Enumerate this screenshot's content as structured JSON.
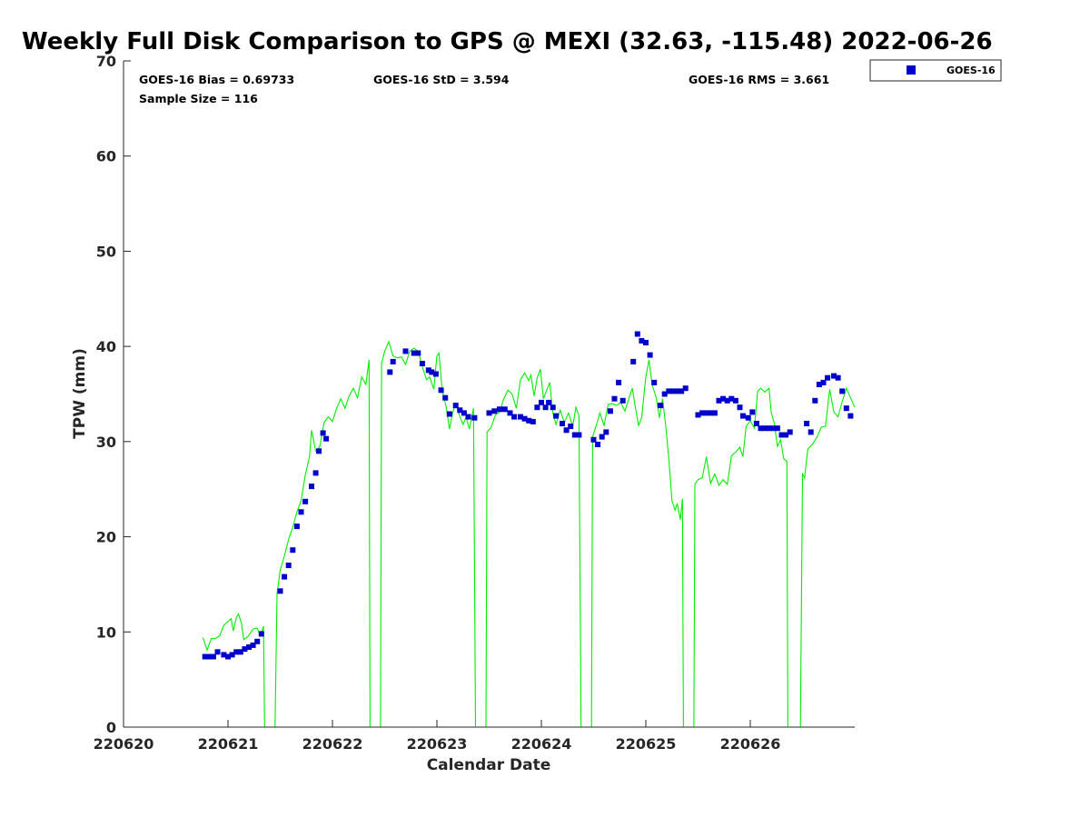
{
  "chart_data": {
    "type": "scatter",
    "title": "Weekly Full Disk Comparison to GPS @ MEXI (32.63, -115.48) 2022-06-26",
    "xlabel": "Calendar Date",
    "ylabel": "TPW (mm)",
    "xlim": [
      0,
      7
    ],
    "ylim": [
      0,
      70
    ],
    "x_ticks": [
      {
        "value": 0,
        "label": "220620"
      },
      {
        "value": 1,
        "label": "220621"
      },
      {
        "value": 2,
        "label": "220622"
      },
      {
        "value": 3,
        "label": "220623"
      },
      {
        "value": 4,
        "label": "220624"
      },
      {
        "value": 5,
        "label": "220625"
      },
      {
        "value": 6,
        "label": "220626"
      }
    ],
    "y_ticks": [
      0,
      10,
      20,
      30,
      40,
      50,
      60,
      70
    ],
    "grid": false,
    "legend": {
      "position": "top-right",
      "entries": [
        "GOES-16"
      ]
    },
    "stats": {
      "bias": "GOES-16 Bias = 0.69733",
      "std": "GOES-16 StD = 3.594",
      "rms": "GOES-16 RMS = 3.661",
      "sample": "Sample Size = 116"
    },
    "colors": {
      "goes": "#0000cc",
      "gps": "#00ee00",
      "axis": "#262626"
    },
    "series": [
      {
        "name": "GOES-16",
        "style": "square-markers",
        "points": [
          [
            0.78,
            7.4
          ],
          [
            0.82,
            7.4
          ],
          [
            0.86,
            7.4
          ],
          [
            0.9,
            7.9
          ],
          [
            0.96,
            7.6
          ],
          [
            1.0,
            7.4
          ],
          [
            1.04,
            7.6
          ],
          [
            1.08,
            7.9
          ],
          [
            1.12,
            7.9
          ],
          [
            1.16,
            8.2
          ],
          [
            1.2,
            8.4
          ],
          [
            1.24,
            8.6
          ],
          [
            1.28,
            9.0
          ],
          [
            1.32,
            9.8
          ],
          [
            1.5,
            14.3
          ],
          [
            1.54,
            15.8
          ],
          [
            1.58,
            17.0
          ],
          [
            1.62,
            18.6
          ],
          [
            1.66,
            21.1
          ],
          [
            1.7,
            22.6
          ],
          [
            1.74,
            23.7
          ],
          [
            1.8,
            25.3
          ],
          [
            1.84,
            26.7
          ],
          [
            1.87,
            29.0
          ],
          [
            1.91,
            30.9
          ],
          [
            1.94,
            30.3
          ],
          [
            2.55,
            37.3
          ],
          [
            2.58,
            38.4
          ],
          [
            2.7,
            39.5
          ],
          [
            2.78,
            39.3
          ],
          [
            2.82,
            39.3
          ],
          [
            2.86,
            38.2
          ],
          [
            2.92,
            37.5
          ],
          [
            2.95,
            37.3
          ],
          [
            2.99,
            37.1
          ],
          [
            3.04,
            35.4
          ],
          [
            3.08,
            34.6
          ],
          [
            3.12,
            32.9
          ],
          [
            3.18,
            33.8
          ],
          [
            3.22,
            33.3
          ],
          [
            3.26,
            33.0
          ],
          [
            3.3,
            32.6
          ],
          [
            3.36,
            32.5
          ],
          [
            3.5,
            33.0
          ],
          [
            3.55,
            33.2
          ],
          [
            3.6,
            33.4
          ],
          [
            3.65,
            33.4
          ],
          [
            3.7,
            33.0
          ],
          [
            3.74,
            32.6
          ],
          [
            3.8,
            32.6
          ],
          [
            3.84,
            32.4
          ],
          [
            3.88,
            32.2
          ],
          [
            3.92,
            32.1
          ],
          [
            3.96,
            33.6
          ],
          [
            4.0,
            34.1
          ],
          [
            4.04,
            33.6
          ],
          [
            4.07,
            34.1
          ],
          [
            4.11,
            33.6
          ],
          [
            4.14,
            32.7
          ],
          [
            4.2,
            31.9
          ],
          [
            4.24,
            31.2
          ],
          [
            4.28,
            31.6
          ],
          [
            4.32,
            30.7
          ],
          [
            4.36,
            30.7
          ],
          [
            4.5,
            30.2
          ],
          [
            4.54,
            29.7
          ],
          [
            4.58,
            30.5
          ],
          [
            4.62,
            31.0
          ],
          [
            4.66,
            33.2
          ],
          [
            4.7,
            34.5
          ],
          [
            4.74,
            36.2
          ],
          [
            4.78,
            34.3
          ],
          [
            4.88,
            38.4
          ],
          [
            4.92,
            41.3
          ],
          [
            4.96,
            40.6
          ],
          [
            5.0,
            40.4
          ],
          [
            5.04,
            39.1
          ],
          [
            5.08,
            36.2
          ],
          [
            5.14,
            33.8
          ],
          [
            5.18,
            35.0
          ],
          [
            5.22,
            35.3
          ],
          [
            5.26,
            35.3
          ],
          [
            5.3,
            35.3
          ],
          [
            5.34,
            35.3
          ],
          [
            5.38,
            35.6
          ],
          [
            5.5,
            32.8
          ],
          [
            5.54,
            33.0
          ],
          [
            5.58,
            33.0
          ],
          [
            5.62,
            33.0
          ],
          [
            5.66,
            33.0
          ],
          [
            5.7,
            34.3
          ],
          [
            5.74,
            34.5
          ],
          [
            5.78,
            34.3
          ],
          [
            5.82,
            34.5
          ],
          [
            5.86,
            34.3
          ],
          [
            5.9,
            33.6
          ],
          [
            5.93,
            32.7
          ],
          [
            5.98,
            32.5
          ],
          [
            6.02,
            33.1
          ],
          [
            6.06,
            31.9
          ],
          [
            6.1,
            31.4
          ],
          [
            6.14,
            31.4
          ],
          [
            6.18,
            31.4
          ],
          [
            6.22,
            31.4
          ],
          [
            6.26,
            31.4
          ],
          [
            6.3,
            30.7
          ],
          [
            6.34,
            30.7
          ],
          [
            6.38,
            31.0
          ],
          [
            6.54,
            31.9
          ],
          [
            6.58,
            31.0
          ],
          [
            6.62,
            34.3
          ],
          [
            6.66,
            36.0
          ],
          [
            6.7,
            36.2
          ],
          [
            6.74,
            36.7
          ],
          [
            6.8,
            36.9
          ],
          [
            6.84,
            36.7
          ],
          [
            6.88,
            35.3
          ],
          [
            6.92,
            33.5
          ],
          [
            6.96,
            32.7
          ]
        ]
      },
      {
        "name": "GPS",
        "style": "line",
        "points": [
          [
            0.76,
            9.4
          ],
          [
            0.8,
            8.1
          ],
          [
            0.84,
            9.3
          ],
          [
            0.88,
            9.3
          ],
          [
            0.92,
            9.6
          ],
          [
            0.96,
            10.7
          ],
          [
            1.0,
            11.1
          ],
          [
            1.03,
            11.4
          ],
          [
            1.05,
            10.1
          ],
          [
            1.08,
            11.5
          ],
          [
            1.1,
            11.9
          ],
          [
            1.13,
            10.9
          ],
          [
            1.15,
            9.2
          ],
          [
            1.19,
            9.5
          ],
          [
            1.24,
            10.3
          ],
          [
            1.28,
            10.4
          ],
          [
            1.31,
            9.6
          ],
          [
            1.34,
            10.6
          ],
          [
            1.35,
            0.0
          ],
          [
            1.45,
            0.0
          ],
          [
            1.47,
            14.0
          ],
          [
            1.5,
            16.5
          ],
          [
            1.54,
            18.0
          ],
          [
            1.58,
            19.7
          ],
          [
            1.62,
            21.0
          ],
          [
            1.66,
            22.6
          ],
          [
            1.7,
            23.8
          ],
          [
            1.74,
            26.5
          ],
          [
            1.78,
            28.4
          ],
          [
            1.8,
            31.2
          ],
          [
            1.84,
            29.0
          ],
          [
            1.88,
            29.5
          ],
          [
            1.92,
            32.0
          ],
          [
            1.96,
            32.6
          ],
          [
            2.0,
            32.1
          ],
          [
            2.04,
            33.5
          ],
          [
            2.08,
            34.5
          ],
          [
            2.12,
            33.5
          ],
          [
            2.16,
            34.8
          ],
          [
            2.2,
            35.6
          ],
          [
            2.24,
            34.6
          ],
          [
            2.28,
            36.8
          ],
          [
            2.32,
            36.0
          ],
          [
            2.35,
            38.6
          ],
          [
            2.36,
            0.0
          ],
          [
            2.46,
            0.0
          ],
          [
            2.47,
            38.2
          ],
          [
            2.5,
            39.5
          ],
          [
            2.54,
            40.5
          ],
          [
            2.58,
            39.0
          ],
          [
            2.62,
            38.8
          ],
          [
            2.66,
            38.9
          ],
          [
            2.7,
            38.1
          ],
          [
            2.74,
            39.5
          ],
          [
            2.78,
            39.8
          ],
          [
            2.82,
            39.5
          ],
          [
            2.86,
            37.9
          ],
          [
            2.9,
            36.5
          ],
          [
            2.93,
            36.8
          ],
          [
            2.97,
            35.5
          ],
          [
            3.0,
            39.0
          ],
          [
            3.02,
            39.3
          ],
          [
            3.05,
            35.5
          ],
          [
            3.09,
            33.6
          ],
          [
            3.12,
            31.3
          ],
          [
            3.15,
            33.0
          ],
          [
            3.18,
            34.0
          ],
          [
            3.22,
            32.6
          ],
          [
            3.25,
            31.8
          ],
          [
            3.28,
            32.6
          ],
          [
            3.31,
            31.3
          ],
          [
            3.35,
            33.5
          ],
          [
            3.37,
            0.0
          ],
          [
            3.47,
            0.0
          ],
          [
            3.48,
            31.0
          ],
          [
            3.52,
            31.5
          ],
          [
            3.56,
            32.8
          ],
          [
            3.6,
            33.1
          ],
          [
            3.64,
            34.5
          ],
          [
            3.68,
            35.4
          ],
          [
            3.72,
            35.0
          ],
          [
            3.76,
            33.5
          ],
          [
            3.8,
            36.5
          ],
          [
            3.84,
            37.2
          ],
          [
            3.88,
            36.4
          ],
          [
            3.9,
            37.0
          ],
          [
            3.93,
            34.8
          ],
          [
            3.96,
            36.7
          ],
          [
            3.99,
            37.6
          ],
          [
            4.02,
            34.5
          ],
          [
            4.05,
            35.4
          ],
          [
            4.08,
            36.2
          ],
          [
            4.11,
            33.0
          ],
          [
            4.14,
            31.8
          ],
          [
            4.18,
            33.3
          ],
          [
            4.22,
            32.0
          ],
          [
            4.26,
            33.0
          ],
          [
            4.3,
            31.6
          ],
          [
            4.33,
            33.6
          ],
          [
            4.36,
            32.7
          ],
          [
            4.38,
            0.0
          ],
          [
            4.48,
            0.0
          ],
          [
            4.49,
            30.5
          ],
          [
            4.52,
            31.5
          ],
          [
            4.56,
            33.0
          ],
          [
            4.6,
            31.7
          ],
          [
            4.64,
            33.9
          ],
          [
            4.68,
            34.0
          ],
          [
            4.72,
            33.8
          ],
          [
            4.76,
            34.1
          ],
          [
            4.8,
            33.2
          ],
          [
            4.84,
            34.6
          ],
          [
            4.87,
            35.6
          ],
          [
            4.9,
            33.6
          ],
          [
            4.93,
            31.7
          ],
          [
            4.96,
            32.5
          ],
          [
            5.0,
            36.8
          ],
          [
            5.03,
            38.6
          ],
          [
            5.06,
            36.0
          ],
          [
            5.1,
            34.6
          ],
          [
            5.13,
            32.5
          ],
          [
            5.16,
            34.5
          ],
          [
            5.19,
            31.7
          ],
          [
            5.22,
            28.2
          ],
          [
            5.25,
            23.8
          ],
          [
            5.28,
            22.8
          ],
          [
            5.3,
            23.5
          ],
          [
            5.33,
            21.8
          ],
          [
            5.35,
            24.0
          ],
          [
            5.36,
            0.0
          ],
          [
            5.46,
            0.0
          ],
          [
            5.47,
            25.5
          ],
          [
            5.5,
            26.0
          ],
          [
            5.54,
            26.2
          ],
          [
            5.58,
            28.4
          ],
          [
            5.62,
            25.6
          ],
          [
            5.66,
            26.6
          ],
          [
            5.7,
            25.4
          ],
          [
            5.74,
            26.0
          ],
          [
            5.78,
            25.5
          ],
          [
            5.82,
            28.5
          ],
          [
            5.86,
            28.9
          ],
          [
            5.9,
            29.4
          ],
          [
            5.93,
            28.4
          ],
          [
            5.96,
            31.6
          ],
          [
            6.0,
            32.2
          ],
          [
            6.04,
            31.4
          ],
          [
            6.07,
            35.3
          ],
          [
            6.1,
            35.6
          ],
          [
            6.14,
            35.2
          ],
          [
            6.18,
            35.6
          ],
          [
            6.2,
            33.1
          ],
          [
            6.23,
            31.9
          ],
          [
            6.26,
            29.5
          ],
          [
            6.29,
            30.2
          ],
          [
            6.32,
            28.2
          ],
          [
            6.35,
            27.9
          ],
          [
            6.36,
            0.0
          ],
          [
            6.48,
            0.0
          ],
          [
            6.5,
            26.6
          ],
          [
            6.52,
            26.2
          ],
          [
            6.55,
            29.2
          ],
          [
            6.6,
            29.8
          ],
          [
            6.64,
            30.5
          ],
          [
            6.68,
            31.5
          ],
          [
            6.72,
            31.6
          ],
          [
            6.76,
            35.5
          ],
          [
            6.8,
            33.1
          ],
          [
            6.84,
            32.6
          ],
          [
            6.88,
            34.2
          ],
          [
            6.92,
            35.6
          ],
          [
            6.96,
            34.6
          ],
          [
            7.0,
            33.6
          ]
        ]
      }
    ]
  }
}
